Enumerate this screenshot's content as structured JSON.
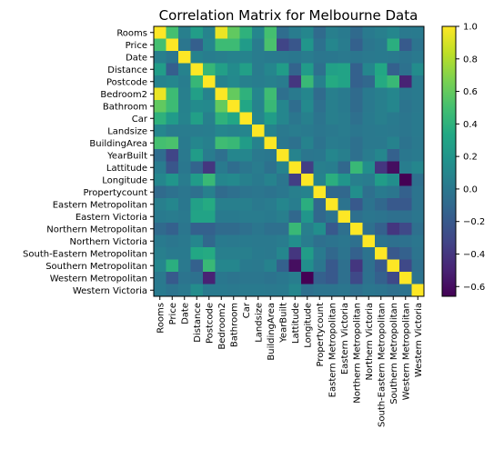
{
  "chart_data": {
    "type": "heatmap",
    "title": "Correlation Matrix for Melbourne Data",
    "labels": [
      "Rooms",
      "Price",
      "Date",
      "Distance",
      "Postcode",
      "Bedroom2",
      "Bathroom",
      "Car",
      "Landsize",
      "BuildingArea",
      "YearBuilt",
      "Lattitude",
      "Longitude",
      "Propertycount",
      "Eastern Metropolitan",
      "Eastern Victoria",
      "Northern Metropolitan",
      "Northern Victoria",
      "South-Eastern Metropolitan",
      "Southern Metropolitan",
      "Western Metropolitan",
      "Western Victoria"
    ],
    "matrix": [
      [
        1.0,
        0.5,
        0.05,
        0.26,
        0.08,
        0.95,
        0.59,
        0.4,
        0.1,
        0.5,
        -0.07,
        0.03,
        0.1,
        -0.08,
        0.05,
        0.02,
        -0.09,
        0.02,
        0.05,
        0.1,
        0.01,
        0.02
      ],
      [
        0.5,
        1.0,
        -0.01,
        -0.16,
        0.1,
        0.47,
        0.47,
        0.24,
        0.03,
        0.52,
        -0.32,
        -0.22,
        0.2,
        -0.04,
        0.1,
        0.03,
        -0.15,
        -0.01,
        0.02,
        0.38,
        -0.19,
        -0.02
      ],
      [
        0.05,
        -0.01,
        1.0,
        0.07,
        0.04,
        0.05,
        0.07,
        0.08,
        0.03,
        0.02,
        0.01,
        0.0,
        0.03,
        -0.01,
        0.0,
        0.01,
        -0.01,
        0.01,
        0.02,
        0.01,
        -0.02,
        0.01
      ],
      [
        0.26,
        -0.16,
        0.07,
        1.0,
        0.44,
        0.27,
        0.13,
        0.27,
        0.03,
        0.1,
        0.25,
        -0.13,
        0.24,
        -0.05,
        0.28,
        0.3,
        -0.15,
        0.1,
        0.33,
        -0.15,
        -0.04,
        0.14
      ],
      [
        0.08,
        0.1,
        0.04,
        0.44,
        1.0,
        0.08,
        0.12,
        0.06,
        0.04,
        0.06,
        0.03,
        -0.4,
        0.45,
        0.06,
        0.35,
        0.3,
        -0.15,
        -0.1,
        0.35,
        0.45,
        -0.5,
        0.02
      ],
      [
        0.95,
        0.47,
        0.05,
        0.27,
        0.08,
        1.0,
        0.6,
        0.4,
        0.1,
        0.48,
        -0.05,
        0.02,
        0.1,
        -0.08,
        0.05,
        0.02,
        -0.08,
        0.02,
        0.05,
        0.1,
        0.0,
        0.02
      ],
      [
        0.59,
        0.47,
        0.07,
        0.13,
        0.12,
        0.6,
        1.0,
        0.32,
        0.08,
        0.45,
        0.1,
        -0.07,
        0.12,
        -0.05,
        0.05,
        0.02,
        -0.08,
        0.01,
        0.05,
        0.1,
        -0.02,
        0.01
      ],
      [
        0.4,
        0.24,
        0.08,
        0.27,
        0.06,
        0.4,
        0.32,
        1.0,
        0.09,
        0.25,
        0.1,
        -0.01,
        0.06,
        -0.02,
        0.05,
        0.03,
        -0.05,
        0.02,
        0.05,
        0.02,
        -0.01,
        0.02
      ],
      [
        0.1,
        0.03,
        0.03,
        0.03,
        0.04,
        0.1,
        0.08,
        0.09,
        1.0,
        0.07,
        0.01,
        0.03,
        0.02,
        -0.01,
        0.01,
        0.03,
        -0.01,
        0.01,
        0.02,
        0.01,
        -0.01,
        0.02
      ],
      [
        0.5,
        0.52,
        0.02,
        0.1,
        0.06,
        0.48,
        0.45,
        0.25,
        0.07,
        1.0,
        0.0,
        -0.04,
        0.07,
        -0.03,
        0.03,
        0.02,
        -0.05,
        0.01,
        0.01,
        0.07,
        -0.03,
        0.01
      ],
      [
        -0.07,
        -0.32,
        0.01,
        0.25,
        0.03,
        -0.05,
        0.1,
        0.1,
        0.01,
        0.0,
        1.0,
        0.08,
        -0.01,
        0.0,
        0.1,
        0.05,
        -0.05,
        0.03,
        0.1,
        -0.15,
        0.0,
        0.02
      ],
      [
        0.03,
        -0.22,
        0.0,
        -0.13,
        -0.4,
        0.02,
        -0.07,
        -0.01,
        0.03,
        -0.04,
        0.08,
        1.0,
        -0.36,
        0.05,
        0.04,
        -0.1,
        0.45,
        0.15,
        -0.4,
        -0.6,
        0.04,
        0.1
      ],
      [
        0.1,
        0.2,
        0.03,
        0.24,
        0.45,
        0.1,
        0.12,
        0.06,
        0.02,
        0.07,
        -0.01,
        -0.36,
        1.0,
        0.07,
        0.38,
        0.2,
        0.05,
        0.03,
        0.25,
        0.15,
        -0.66,
        -0.05
      ],
      [
        -0.08,
        -0.04,
        -0.01,
        -0.05,
        0.06,
        -0.08,
        -0.05,
        -0.02,
        -0.01,
        -0.03,
        0.0,
        0.05,
        0.07,
        1.0,
        -0.1,
        -0.1,
        0.15,
        -0.05,
        0.02,
        -0.01,
        -0.15,
        -0.02
      ],
      [
        0.05,
        0.1,
        0.0,
        0.28,
        0.35,
        0.05,
        0.05,
        0.05,
        0.01,
        0.03,
        0.1,
        0.04,
        0.38,
        -0.1,
        1.0,
        -0.03,
        -0.2,
        -0.03,
        -0.1,
        -0.2,
        -0.2,
        -0.02
      ],
      [
        0.02,
        0.03,
        0.01,
        0.3,
        0.3,
        0.02,
        0.02,
        0.03,
        0.03,
        0.02,
        0.05,
        -0.1,
        0.2,
        -0.1,
        -0.03,
        1.0,
        -0.05,
        -0.01,
        -0.02,
        -0.05,
        -0.05,
        -0.01
      ],
      [
        -0.09,
        -0.15,
        -0.01,
        -0.15,
        -0.15,
        -0.08,
        -0.08,
        -0.05,
        -0.01,
        -0.05,
        -0.05,
        0.45,
        0.05,
        0.15,
        -0.2,
        -0.05,
        1.0,
        -0.05,
        -0.15,
        -0.4,
        -0.3,
        -0.05
      ],
      [
        0.02,
        -0.01,
        0.01,
        0.1,
        -0.1,
        0.02,
        0.01,
        0.02,
        0.01,
        0.01,
        0.03,
        0.15,
        0.03,
        -0.05,
        -0.03,
        -0.01,
        -0.05,
        1.0,
        -0.03,
        -0.05,
        -0.04,
        -0.01
      ],
      [
        0.05,
        0.02,
        0.02,
        0.33,
        0.35,
        0.05,
        0.05,
        0.05,
        0.02,
        0.01,
        0.1,
        -0.4,
        0.25,
        0.02,
        -0.1,
        -0.02,
        -0.15,
        -0.03,
        1.0,
        -0.2,
        -0.15,
        -0.02
      ],
      [
        0.1,
        0.38,
        0.01,
        -0.15,
        0.45,
        0.1,
        0.1,
        0.02,
        0.01,
        0.07,
        -0.15,
        -0.6,
        0.15,
        -0.01,
        -0.2,
        -0.05,
        -0.4,
        -0.05,
        -0.2,
        1.0,
        -0.3,
        -0.05
      ],
      [
        0.01,
        -0.19,
        -0.02,
        -0.04,
        -0.5,
        0.0,
        -0.02,
        -0.01,
        -0.01,
        -0.03,
        0.0,
        0.04,
        -0.66,
        -0.15,
        -0.2,
        -0.05,
        -0.3,
        -0.04,
        -0.15,
        -0.3,
        1.0,
        -0.03
      ],
      [
        0.02,
        -0.02,
        0.01,
        0.14,
        0.02,
        0.02,
        0.01,
        0.02,
        0.02,
        0.01,
        0.02,
        0.1,
        -0.05,
        -0.02,
        -0.02,
        -0.01,
        -0.05,
        -0.01,
        -0.02,
        -0.05,
        -0.03,
        1.0
      ]
    ],
    "colorbar": {
      "ticks": [
        1.0,
        0.8,
        0.6,
        0.4,
        0.2,
        0.0,
        -0.2,
        -0.4,
        -0.6
      ],
      "tick_labels": [
        "1.0",
        "0.8",
        "0.6",
        "0.4",
        "0.2",
        "0.0",
        "−0.2",
        "−0.4",
        "−0.6"
      ],
      "min": -0.66,
      "max": 1.0
    },
    "colormap": "viridis",
    "xlabel": "",
    "ylabel": ""
  }
}
